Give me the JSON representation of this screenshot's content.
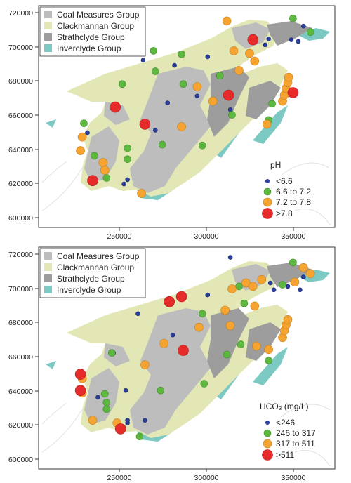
{
  "geology_legend": {
    "items": [
      {
        "label": "Coal Measures Group",
        "color": "#bdbdbd"
      },
      {
        "label": "Clackmannan Group",
        "color": "#e3e7b6"
      },
      {
        "label": "Strathclyde Group",
        "color": "#9d9d9d"
      },
      {
        "label": "Inverclyde Group",
        "color": "#7cc9c3"
      }
    ]
  },
  "axes": {
    "x_ticks": [
      "250000",
      "300000",
      "350000"
    ],
    "y_ticks": [
      "600000",
      "620000",
      "640000",
      "660000",
      "680000",
      "700000",
      "720000"
    ]
  },
  "colors": {
    "class1": "#2b3f9a",
    "class2": "#5db83f",
    "class3": "#f5a431",
    "class4": "#e62b2b",
    "frame": "#333333"
  },
  "chart_data": [
    {
      "type": "scatter",
      "legend_title": "pH",
      "legend_items": [
        "<6.6",
        "6.6 to 7.2",
        "7.2 to 7.8",
        ">7.8"
      ],
      "xlim": [
        205000,
        375000
      ],
      "ylim": [
        595000,
        725000
      ],
      "points": [
        {
          "x": 236000,
          "y": 622500,
          "cls": 4
        },
        {
          "x": 249000,
          "y": 665500,
          "cls": 4
        },
        {
          "x": 266000,
          "y": 655500,
          "cls": 4
        },
        {
          "x": 314000,
          "y": 672500,
          "cls": 4
        },
        {
          "x": 328000,
          "y": 705000,
          "cls": 4
        },
        {
          "x": 351000,
          "y": 674000,
          "cls": 4
        },
        {
          "x": 229000,
          "y": 640000,
          "cls": 3
        },
        {
          "x": 230000,
          "y": 648000,
          "cls": 3
        },
        {
          "x": 242000,
          "y": 633000,
          "cls": 3
        },
        {
          "x": 243000,
          "y": 628500,
          "cls": 3
        },
        {
          "x": 264000,
          "y": 615000,
          "cls": 3
        },
        {
          "x": 287000,
          "y": 654000,
          "cls": 3
        },
        {
          "x": 296000,
          "y": 677500,
          "cls": 3
        },
        {
          "x": 305000,
          "y": 669000,
          "cls": 3
        },
        {
          "x": 313000,
          "y": 716000,
          "cls": 3
        },
        {
          "x": 317000,
          "y": 698500,
          "cls": 3
        },
        {
          "x": 320000,
          "y": 687000,
          "cls": 3
        },
        {
          "x": 326000,
          "y": 697000,
          "cls": 3
        },
        {
          "x": 329000,
          "y": 692500,
          "cls": 3
        },
        {
          "x": 336000,
          "y": 655500,
          "cls": 3
        },
        {
          "x": 345000,
          "y": 669000,
          "cls": 3
        },
        {
          "x": 346000,
          "y": 672500,
          "cls": 3
        },
        {
          "x": 347000,
          "y": 676500,
          "cls": 3
        },
        {
          "x": 348000,
          "y": 680000,
          "cls": 3
        },
        {
          "x": 348500,
          "y": 683000,
          "cls": 3
        },
        {
          "x": 235000,
          "y": 719000,
          "cls": 3
        },
        {
          "x": 231000,
          "y": 656000,
          "cls": 2
        },
        {
          "x": 237000,
          "y": 637000,
          "cls": 2
        },
        {
          "x": 244000,
          "y": 624000,
          "cls": 2
        },
        {
          "x": 253000,
          "y": 679000,
          "cls": 2
        },
        {
          "x": 256000,
          "y": 641500,
          "cls": 2
        },
        {
          "x": 256000,
          "y": 635000,
          "cls": 2
        },
        {
          "x": 271000,
          "y": 698500,
          "cls": 2
        },
        {
          "x": 272000,
          "y": 686500,
          "cls": 2
        },
        {
          "x": 276000,
          "y": 643500,
          "cls": 2
        },
        {
          "x": 287000,
          "y": 696500,
          "cls": 2
        },
        {
          "x": 288000,
          "y": 679000,
          "cls": 2
        },
        {
          "x": 299000,
          "y": 643000,
          "cls": 2
        },
        {
          "x": 309000,
          "y": 684000,
          "cls": 2
        },
        {
          "x": 316000,
          "y": 661000,
          "cls": 2
        },
        {
          "x": 337000,
          "y": 658000,
          "cls": 2
        },
        {
          "x": 339000,
          "y": 667500,
          "cls": 2
        },
        {
          "x": 351000,
          "y": 717500,
          "cls": 2
        },
        {
          "x": 361000,
          "y": 709500,
          "cls": 2
        },
        {
          "x": 233000,
          "y": 650500,
          "cls": 1
        },
        {
          "x": 244000,
          "y": 628000,
          "cls": 1
        },
        {
          "x": 254000,
          "y": 620500,
          "cls": 1
        },
        {
          "x": 256000,
          "y": 623000,
          "cls": 1
        },
        {
          "x": 265000,
          "y": 693000,
          "cls": 1
        },
        {
          "x": 272000,
          "y": 652000,
          "cls": 1
        },
        {
          "x": 279000,
          "y": 668000,
          "cls": 1
        },
        {
          "x": 283000,
          "y": 690000,
          "cls": 1
        },
        {
          "x": 296000,
          "y": 672000,
          "cls": 1
        },
        {
          "x": 302000,
          "y": 695000,
          "cls": 1
        },
        {
          "x": 315000,
          "y": 664000,
          "cls": 1
        },
        {
          "x": 335000,
          "y": 702000,
          "cls": 1
        },
        {
          "x": 337000,
          "y": 705500,
          "cls": 1
        },
        {
          "x": 350000,
          "y": 705000,
          "cls": 1
        },
        {
          "x": 354000,
          "y": 704000,
          "cls": 1
        },
        {
          "x": 357000,
          "y": 713000,
          "cls": 1
        }
      ]
    },
    {
      "type": "scatter",
      "legend_title": "HCO₃ (mg/L)",
      "legend_items": [
        "<246",
        "246 to 317",
        "317 to 511",
        ">511"
      ],
      "xlim": [
        205000,
        375000
      ],
      "ylim": [
        595000,
        725000
      ],
      "points": [
        {
          "x": 229000,
          "y": 650500,
          "cls": 4
        },
        {
          "x": 229000,
          "y": 641000,
          "cls": 4
        },
        {
          "x": 252000,
          "y": 618500,
          "cls": 4
        },
        {
          "x": 280000,
          "y": 693000,
          "cls": 4
        },
        {
          "x": 287000,
          "y": 696000,
          "cls": 4
        },
        {
          "x": 288000,
          "y": 664500,
          "cls": 4
        },
        {
          "x": 230000,
          "y": 648000,
          "cls": 3
        },
        {
          "x": 230000,
          "y": 639500,
          "cls": 3
        },
        {
          "x": 236000,
          "y": 623500,
          "cls": 3
        },
        {
          "x": 250000,
          "y": 622000,
          "cls": 3
        },
        {
          "x": 266000,
          "y": 656000,
          "cls": 3
        },
        {
          "x": 277000,
          "y": 668500,
          "cls": 3
        },
        {
          "x": 297000,
          "y": 678000,
          "cls": 3
        },
        {
          "x": 312000,
          "y": 688000,
          "cls": 3
        },
        {
          "x": 315000,
          "y": 679000,
          "cls": 3
        },
        {
          "x": 316000,
          "y": 700500,
          "cls": 3
        },
        {
          "x": 324000,
          "y": 704000,
          "cls": 3
        },
        {
          "x": 328000,
          "y": 702000,
          "cls": 3
        },
        {
          "x": 329000,
          "y": 690500,
          "cls": 3
        },
        {
          "x": 330000,
          "y": 667000,
          "cls": 3
        },
        {
          "x": 333000,
          "y": 706000,
          "cls": 3
        },
        {
          "x": 337000,
          "y": 665000,
          "cls": 3
        },
        {
          "x": 345000,
          "y": 672000,
          "cls": 3
        },
        {
          "x": 346000,
          "y": 676000,
          "cls": 3
        },
        {
          "x": 347000,
          "y": 679500,
          "cls": 3
        },
        {
          "x": 348000,
          "y": 682500,
          "cls": 3
        },
        {
          "x": 352000,
          "y": 704500,
          "cls": 3
        },
        {
          "x": 357000,
          "y": 713000,
          "cls": 3
        },
        {
          "x": 361000,
          "y": 709500,
          "cls": 3
        },
        {
          "x": 243000,
          "y": 639000,
          "cls": 2
        },
        {
          "x": 244000,
          "y": 634000,
          "cls": 2
        },
        {
          "x": 244000,
          "y": 630000,
          "cls": 2
        },
        {
          "x": 247000,
          "y": 663000,
          "cls": 2
        },
        {
          "x": 253000,
          "y": 619000,
          "cls": 2
        },
        {
          "x": 263000,
          "y": 614000,
          "cls": 2
        },
        {
          "x": 275000,
          "y": 641000,
          "cls": 2
        },
        {
          "x": 299000,
          "y": 686000,
          "cls": 2
        },
        {
          "x": 300000,
          "y": 645000,
          "cls": 2
        },
        {
          "x": 313000,
          "y": 662000,
          "cls": 2
        },
        {
          "x": 320000,
          "y": 702000,
          "cls": 2
        },
        {
          "x": 321000,
          "y": 668000,
          "cls": 2
        },
        {
          "x": 323000,
          "y": 692000,
          "cls": 2
        },
        {
          "x": 337000,
          "y": 658500,
          "cls": 2
        },
        {
          "x": 345000,
          "y": 703000,
          "cls": 2
        },
        {
          "x": 351000,
          "y": 716000,
          "cls": 2
        },
        {
          "x": 239000,
          "y": 637000,
          "cls": 1
        },
        {
          "x": 248000,
          "y": 663000,
          "cls": 1
        },
        {
          "x": 255000,
          "y": 641000,
          "cls": 1
        },
        {
          "x": 256000,
          "y": 623500,
          "cls": 1
        },
        {
          "x": 256000,
          "y": 622000,
          "cls": 1
        },
        {
          "x": 262000,
          "y": 686000,
          "cls": 1
        },
        {
          "x": 266000,
          "y": 623500,
          "cls": 1
        },
        {
          "x": 282000,
          "y": 673500,
          "cls": 1
        },
        {
          "x": 302000,
          "y": 697000,
          "cls": 1
        },
        {
          "x": 315000,
          "y": 719000,
          "cls": 1
        },
        {
          "x": 338000,
          "y": 704000,
          "cls": 1
        },
        {
          "x": 340000,
          "y": 700000,
          "cls": 1
        },
        {
          "x": 348000,
          "y": 702000,
          "cls": 1
        },
        {
          "x": 355000,
          "y": 700000,
          "cls": 1
        },
        {
          "x": 357000,
          "y": 707500,
          "cls": 1
        }
      ]
    }
  ]
}
